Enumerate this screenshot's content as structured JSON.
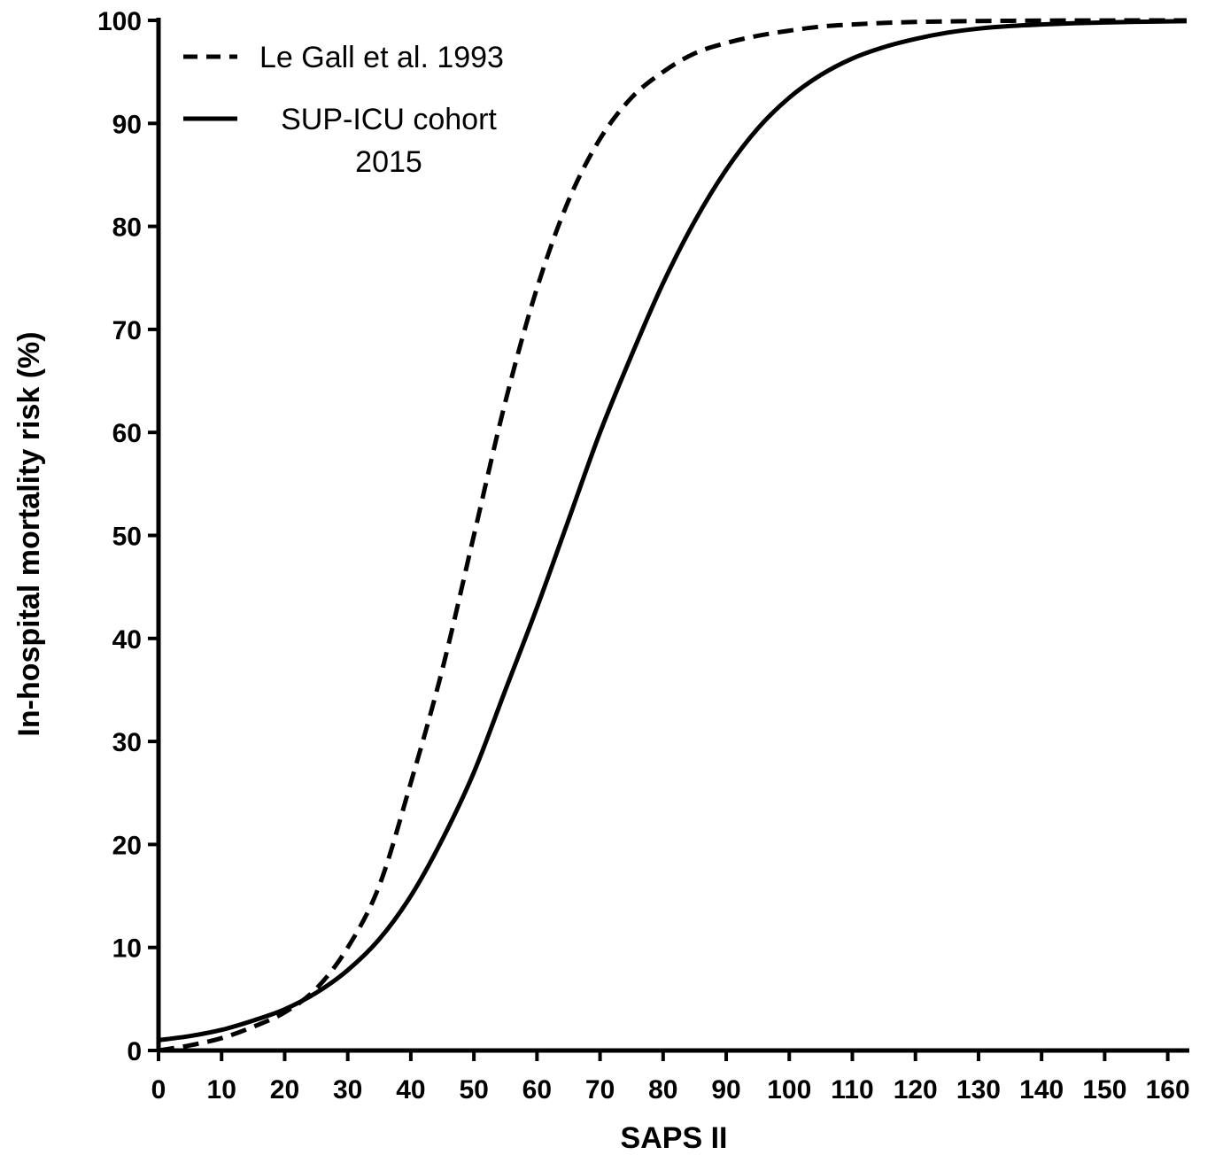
{
  "chart_data": {
    "type": "line",
    "title": "",
    "xlabel": "SAPS II",
    "ylabel": "In-hospital mortality risk (%)",
    "xlim": [
      0,
      163
    ],
    "ylim": [
      0,
      100
    ],
    "x_ticks": [
      0,
      10,
      20,
      30,
      40,
      50,
      60,
      70,
      80,
      90,
      100,
      110,
      120,
      130,
      140,
      150,
      160
    ],
    "y_ticks": [
      0,
      10,
      20,
      30,
      40,
      50,
      60,
      70,
      80,
      90,
      100
    ],
    "grid": false,
    "legend_position": "top-left",
    "x": [
      0,
      5,
      10,
      15,
      20,
      25,
      30,
      35,
      40,
      45,
      50,
      55,
      60,
      65,
      70,
      75,
      80,
      85,
      90,
      95,
      100,
      105,
      110,
      115,
      120,
      125,
      130,
      135,
      140,
      145,
      150,
      155,
      160,
      163
    ],
    "series": [
      {
        "name": "Le Gall et al. 1993",
        "line_style": "dashed",
        "color": "#000000",
        "values": [
          0.0,
          0.5,
          1.2,
          2.3,
          3.7,
          6.0,
          10.0,
          16.0,
          26.0,
          37.0,
          50.0,
          63.0,
          74.0,
          82.5,
          88.5,
          92.5,
          95.0,
          96.8,
          97.8,
          98.5,
          99.0,
          99.4,
          99.6,
          99.75,
          99.85,
          99.9,
          99.94,
          99.96,
          99.98,
          99.99,
          99.99,
          100.0,
          100.0,
          100.0
        ]
      },
      {
        "name": "SUP-ICU cohort 2015",
        "legend_lines": [
          "SUP-ICU cohort",
          "2015"
        ],
        "line_style": "solid",
        "color": "#000000",
        "values": [
          1.0,
          1.4,
          2.0,
          2.9,
          4.0,
          5.6,
          7.8,
          10.8,
          15.0,
          20.5,
          27.0,
          35.0,
          43.0,
          51.5,
          60.0,
          67.5,
          74.5,
          80.5,
          85.5,
          89.5,
          92.5,
          94.7,
          96.3,
          97.4,
          98.2,
          98.8,
          99.2,
          99.45,
          99.6,
          99.72,
          99.8,
          99.86,
          99.9,
          99.92
        ]
      }
    ]
  }
}
